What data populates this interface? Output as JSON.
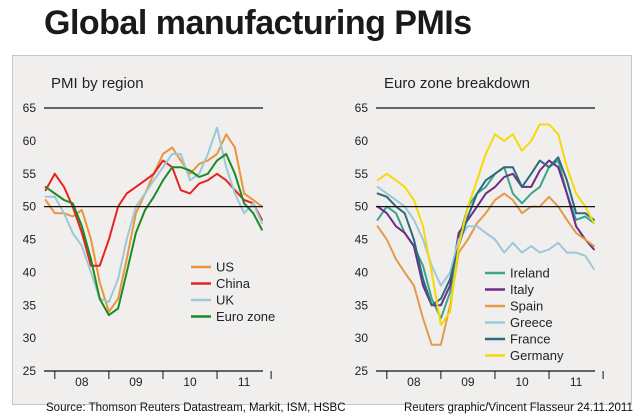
{
  "title": "Global manufacturing PMIs",
  "source": "Source: Thomson Reuters Datastream, Markit, ISM, HSBC",
  "credit": "Reuters graphic/Vincent Flasseur 24.11.2011",
  "chart_data": [
    {
      "type": "line",
      "subtitle": "PMI by region",
      "ylim": [
        25,
        65
      ],
      "yticks": [
        25,
        30,
        35,
        40,
        45,
        50,
        55,
        60,
        65
      ],
      "x_ticklabels": [
        "08",
        "09",
        "10",
        "11"
      ],
      "x_range": [
        2007.8,
        2011.85
      ],
      "reference_line": 50,
      "grid": false,
      "legend_position": "bottom-right",
      "x": [
        2007.83,
        2008.0,
        2008.17,
        2008.33,
        2008.5,
        2008.67,
        2008.83,
        2009.0,
        2009.17,
        2009.33,
        2009.5,
        2009.67,
        2009.83,
        2010.0,
        2010.17,
        2010.33,
        2010.5,
        2010.67,
        2010.83,
        2011.0,
        2011.17,
        2011.33,
        2011.5,
        2011.67,
        2011.83
      ],
      "series": [
        {
          "name": "US",
          "color": "#e8963a",
          "values": [
            51,
            49,
            49,
            48.5,
            49.5,
            45,
            38.5,
            34,
            36,
            42,
            49,
            52,
            55,
            58,
            59,
            57,
            55,
            56.5,
            57,
            58,
            61,
            59,
            52,
            51,
            50
          ]
        },
        {
          "name": "China",
          "color": "#e52320",
          "values": [
            52.5,
            55,
            53,
            50,
            46,
            41,
            41,
            45,
            50,
            52,
            53,
            54,
            55,
            57,
            56,
            52.5,
            52,
            53.5,
            54,
            55,
            54,
            52.5,
            51,
            50.5,
            48
          ]
        },
        {
          "name": "UK",
          "color": "#9cc8d8",
          "values": [
            51.5,
            51.5,
            49,
            46,
            44,
            40,
            36,
            35.5,
            39,
            45,
            50,
            52,
            54,
            56,
            58,
            58,
            54,
            55,
            58,
            62,
            56,
            52,
            49,
            50.5,
            47.5
          ]
        },
        {
          "name": "Euro zone",
          "color": "#1e8a26",
          "values": [
            53,
            52,
            51,
            50.5,
            47,
            42,
            36,
            33.5,
            34.5,
            40,
            46,
            49.5,
            51.5,
            54,
            56,
            56,
            55.5,
            54.5,
            55,
            57,
            58,
            55,
            50.5,
            49,
            46.5
          ]
        }
      ]
    },
    {
      "type": "line",
      "subtitle": "Euro zone breakdown",
      "ylim": [
        25,
        65
      ],
      "yticks": [
        25,
        30,
        35,
        40,
        45,
        50,
        55,
        60,
        65
      ],
      "x_ticklabels": [
        "08",
        "09",
        "10",
        "11"
      ],
      "x_range": [
        2007.8,
        2011.85
      ],
      "reference_line": 50,
      "grid": false,
      "legend_position": "bottom-right",
      "x": [
        2007.83,
        2008.0,
        2008.17,
        2008.33,
        2008.5,
        2008.67,
        2008.83,
        2009.0,
        2009.17,
        2009.33,
        2009.5,
        2009.67,
        2009.83,
        2010.0,
        2010.17,
        2010.33,
        2010.5,
        2010.67,
        2010.83,
        2011.0,
        2011.17,
        2011.33,
        2011.5,
        2011.67,
        2011.83
      ],
      "series": [
        {
          "name": "Ireland",
          "color": "#3aa58a",
          "values": [
            48,
            50,
            49,
            46,
            44,
            41,
            36,
            33,
            37,
            45,
            50,
            52,
            53,
            55,
            56,
            52,
            50.5,
            52,
            53,
            56,
            57,
            52,
            48,
            48.5,
            47.5
          ]
        },
        {
          "name": "Italy",
          "color": "#6a2d8a",
          "values": [
            50,
            49,
            47,
            46,
            44,
            38,
            35,
            35,
            38,
            46,
            48,
            50,
            52,
            53,
            54.5,
            55,
            53,
            53,
            55.5,
            57,
            56,
            52,
            47,
            45,
            43.5
          ]
        },
        {
          "name": "Spain",
          "color": "#e39a4a",
          "values": [
            47,
            45,
            42,
            40,
            38,
            33,
            29,
            29,
            35,
            43,
            45,
            47.5,
            49,
            51,
            52,
            51,
            49,
            50,
            50,
            51.5,
            50,
            48,
            46,
            45,
            44
          ]
        },
        {
          "name": "Greece",
          "color": "#9cc8d8",
          "values": [
            53,
            52,
            51,
            50,
            48,
            45,
            41,
            38,
            40,
            45,
            47,
            47,
            46,
            45,
            43,
            44.5,
            43,
            44,
            43,
            43.5,
            44.5,
            43,
            43,
            42.5,
            40.5
          ]
        },
        {
          "name": "France",
          "color": "#2d6a7f",
          "values": [
            52,
            51.5,
            50,
            49,
            45,
            39,
            35,
            36,
            39,
            44,
            48.5,
            52,
            54,
            55,
            56,
            56,
            53,
            55,
            57,
            56,
            57.5,
            54,
            49,
            49,
            48
          ]
        },
        {
          "name": "Germany",
          "color": "#f5d90a",
          "values": [
            54,
            55,
            54,
            53,
            51,
            47,
            40,
            32,
            34,
            44,
            50,
            54,
            58,
            61,
            60,
            61,
            58.5,
            60,
            62.5,
            62.5,
            61,
            56,
            52,
            50,
            47.5
          ]
        }
      ]
    }
  ]
}
